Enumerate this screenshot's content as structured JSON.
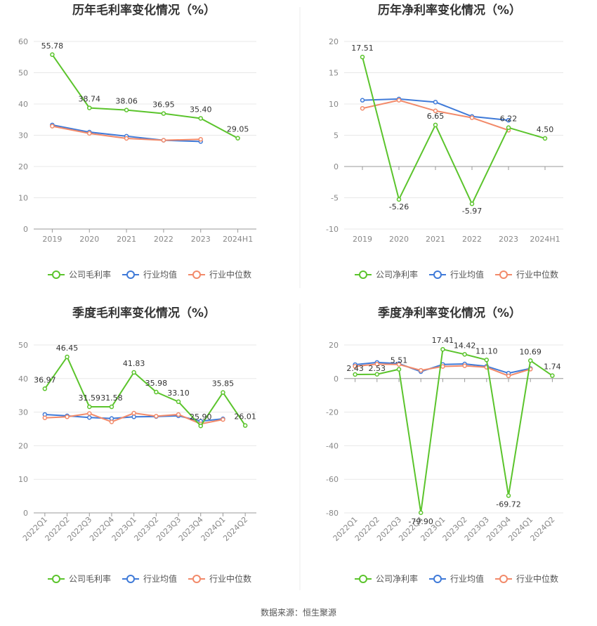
{
  "source": "数据来源：恒生聚源",
  "colors": {
    "company": "#5bc42c",
    "avg": "#3f7ad8",
    "median": "#f28a6a",
    "grid": "#e8e8e8",
    "axis": "#999999"
  },
  "legend_labels": {
    "gross": [
      "公司毛利率",
      "行业均值",
      "行业中位数"
    ],
    "net": [
      "公司净利率",
      "行业均值",
      "行业中位数"
    ]
  },
  "chart_data": [
    {
      "type": "line",
      "title": "历年毛利率变化情况（%）",
      "categories": [
        "2019",
        "2020",
        "2021",
        "2022",
        "2023",
        "2024H1"
      ],
      "ylim": [
        0,
        60
      ],
      "yticks": [
        0,
        10,
        20,
        30,
        40,
        50,
        60
      ],
      "legend": "bottom",
      "series": [
        {
          "name": "公司毛利率",
          "values": [
            55.78,
            38.74,
            38.06,
            36.95,
            35.4,
            29.05
          ],
          "labels": [
            "55.78",
            "38.74",
            "38.06",
            "36.95",
            "35.40",
            "29.05"
          ]
        },
        {
          "name": "行业均值",
          "values": [
            33.3,
            31.0,
            29.7,
            28.4,
            28.0,
            null
          ]
        },
        {
          "name": "行业中位数",
          "values": [
            32.9,
            30.6,
            29.0,
            28.4,
            28.7,
            null
          ]
        }
      ]
    },
    {
      "type": "line",
      "title": "历年净利率变化情况（%）",
      "categories": [
        "2019",
        "2020",
        "2021",
        "2022",
        "2023",
        "2024H1"
      ],
      "ylim": [
        -10,
        20
      ],
      "yticks": [
        -10,
        -5,
        0,
        5,
        10,
        15,
        20
      ],
      "legend": "bottom",
      "series": [
        {
          "name": "公司净利率",
          "values": [
            17.51,
            -5.26,
            6.65,
            -5.97,
            6.22,
            4.5
          ],
          "labels": [
            "17.51",
            "-5.26",
            "6.65",
            "-5.97",
            "6.22",
            "4.50"
          ]
        },
        {
          "name": "行业均值",
          "values": [
            10.6,
            10.8,
            10.3,
            8.0,
            7.4,
            null
          ]
        },
        {
          "name": "行业中位数",
          "values": [
            9.3,
            10.6,
            8.9,
            7.8,
            5.8,
            null
          ]
        }
      ]
    },
    {
      "type": "line",
      "title": "季度毛利率变化情况（%）",
      "categories": [
        "2022Q1",
        "2022Q2",
        "2022Q3",
        "2022Q4",
        "2023Q1",
        "2023Q2",
        "2023Q3",
        "2023Q4",
        "2024Q1",
        "2024Q2"
      ],
      "ylim": [
        0,
        50
      ],
      "yticks": [
        0,
        10,
        20,
        30,
        40,
        50
      ],
      "legend": "bottom",
      "series": [
        {
          "name": "公司毛利率",
          "values": [
            36.97,
            46.45,
            31.59,
            31.58,
            41.83,
            35.98,
            33.1,
            25.9,
            35.85,
            26.01
          ],
          "labels": [
            "36.97",
            "46.45",
            "31.59",
            "31.58",
            "41.83",
            "35.98",
            "33.10",
            "25.90",
            "35.85",
            "26.01"
          ]
        },
        {
          "name": "行业均值",
          "values": [
            29.3,
            28.9,
            28.4,
            28.1,
            28.6,
            28.7,
            28.9,
            27.3,
            28.0,
            null
          ]
        },
        {
          "name": "行业中位数",
          "values": [
            28.3,
            28.6,
            29.6,
            27.1,
            29.7,
            28.8,
            29.3,
            26.5,
            27.8,
            null
          ]
        }
      ]
    },
    {
      "type": "line",
      "title": "季度净利率变化情况（%）",
      "categories": [
        "2022Q1",
        "2022Q2",
        "2022Q3",
        "2022Q4",
        "2023Q1",
        "2023Q2",
        "2023Q3",
        "2023Q4",
        "2024Q1",
        "2024Q2"
      ],
      "ylim": [
        -80,
        20
      ],
      "yticks": [
        -80,
        -60,
        -40,
        -20,
        0,
        20
      ],
      "legend": "bottom",
      "series": [
        {
          "name": "公司净利率",
          "values": [
            2.43,
            2.53,
            5.51,
            -79.9,
            17.41,
            14.42,
            11.1,
            -69.72,
            10.69,
            1.74
          ],
          "labels": [
            "2.43",
            "2.53",
            "5.51",
            "-79.90",
            "17.41",
            "14.42",
            "11.10",
            "-69.72",
            "10.69",
            "1.74"
          ]
        },
        {
          "name": "行业均值",
          "values": [
            8.3,
            9.6,
            8.9,
            4.1,
            8.4,
            8.7,
            7.3,
            3.2,
            6.0,
            null
          ]
        },
        {
          "name": "行业中位数",
          "values": [
            7.3,
            8.6,
            8.4,
            4.9,
            7.2,
            7.6,
            6.7,
            1.6,
            5.6,
            null
          ]
        }
      ]
    }
  ]
}
